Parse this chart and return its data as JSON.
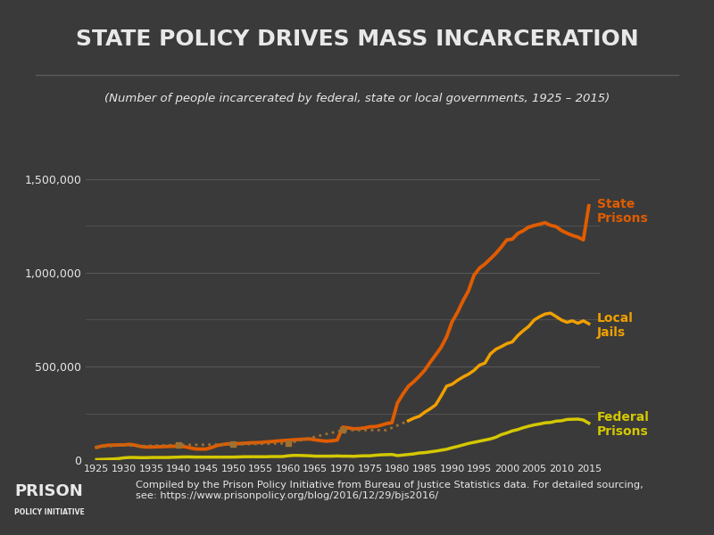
{
  "title": "STATE POLICY DRIVES MASS INCARCERATION",
  "subtitle": "(Number of people incarcerated by federal, state or local governments, 1925 – 2015)",
  "background_color": "#3a3a3a",
  "text_color": "#e8e8e8",
  "grid_color": "#5a5a5a",
  "footnote": "Compiled by the Prison Policy Initiative from Bureau of Justice Statistics data. For detailed sourcing,\nsee: https://www.prisonpolicy.org/blog/2016/12/29/bjs2016/",
  "state_color": "#e05c00",
  "jail_color": "#f0a000",
  "federal_color": "#d4c800",
  "jail_dotted_color": "#a07030",
  "ylim": [
    0,
    1600000
  ],
  "state_prisons": {
    "years": [
      1925,
      1926,
      1927,
      1928,
      1929,
      1930,
      1931,
      1932,
      1933,
      1934,
      1935,
      1936,
      1937,
      1938,
      1939,
      1940,
      1941,
      1942,
      1943,
      1944,
      1945,
      1946,
      1947,
      1948,
      1949,
      1950,
      1951,
      1952,
      1953,
      1954,
      1955,
      1956,
      1957,
      1958,
      1959,
      1960,
      1961,
      1962,
      1963,
      1964,
      1965,
      1966,
      1967,
      1968,
      1969,
      1970,
      1971,
      1972,
      1973,
      1974,
      1975,
      1976,
      1977,
      1978,
      1979,
      1980,
      1981,
      1982,
      1983,
      1984,
      1985,
      1986,
      1987,
      1988,
      1989,
      1990,
      1991,
      1992,
      1993,
      1994,
      1995,
      1996,
      1997,
      1998,
      1999,
      2000,
      2001,
      2002,
      2003,
      2004,
      2005,
      2006,
      2007,
      2008,
      2009,
      2010,
      2011,
      2012,
      2013,
      2014,
      2015
    ],
    "values": [
      68000,
      75000,
      79000,
      80000,
      81000,
      81000,
      84000,
      80000,
      73000,
      70000,
      70000,
      71000,
      72000,
      73000,
      74000,
      74000,
      72000,
      66000,
      60000,
      59000,
      59000,
      67000,
      78000,
      83000,
      87000,
      87000,
      88000,
      90000,
      92000,
      93000,
      94000,
      97000,
      99000,
      102000,
      104000,
      106000,
      108000,
      110000,
      112000,
      113000,
      108000,
      104000,
      101000,
      103000,
      107000,
      176000,
      172000,
      167000,
      168000,
      172000,
      178000,
      179000,
      186000,
      195000,
      200000,
      305000,
      353000,
      394000,
      419000,
      448000,
      480000,
      523000,
      562000,
      603000,
      659000,
      739000,
      790000,
      851000,
      904000,
      987000,
      1025000,
      1047000,
      1075000,
      1104000,
      1138000,
      1176000,
      1180000,
      1210000,
      1225000,
      1244000,
      1253000,
      1260000,
      1268000,
      1254000,
      1247000,
      1226000,
      1212000,
      1200000,
      1191000,
      1176000,
      1358000
    ]
  },
  "local_jails": {
    "years": [
      1925,
      1930,
      1933,
      1940,
      1950,
      1960,
      1970,
      1978,
      1982,
      1983,
      1984,
      1985,
      1986,
      1987,
      1988,
      1989,
      1990,
      1991,
      1992,
      1993,
      1994,
      1995,
      1996,
      1997,
      1998,
      1999,
      2000,
      2001,
      2002,
      2003,
      2004,
      2005,
      2006,
      2007,
      2008,
      2009,
      2010,
      2011,
      2012,
      2013,
      2014,
      2015
    ],
    "values": [
      70000,
      80000,
      75000,
      81000,
      84000,
      90000,
      160000,
      160000,
      210000,
      224000,
      234000,
      256000,
      274000,
      295000,
      343000,
      395000,
      405000,
      426000,
      444000,
      459000,
      479000,
      507000,
      518000,
      567000,
      592000,
      606000,
      622000,
      631000,
      665000,
      691000,
      714000,
      748000,
      766000,
      780000,
      785000,
      767000,
      748000,
      736000,
      744000,
      731000,
      744000,
      728000
    ],
    "dotted_years": [
      1925,
      1930,
      1933,
      1940,
      1950,
      1960,
      1970,
      1978,
      1982
    ],
    "dotted_values": [
      70000,
      80000,
      75000,
      81000,
      84000,
      90000,
      160000,
      160000,
      210000
    ]
  },
  "federal_prisons": {
    "years": [
      1925,
      1926,
      1927,
      1928,
      1929,
      1930,
      1931,
      1932,
      1933,
      1934,
      1935,
      1936,
      1937,
      1938,
      1939,
      1940,
      1941,
      1942,
      1943,
      1944,
      1945,
      1946,
      1947,
      1948,
      1949,
      1950,
      1951,
      1952,
      1953,
      1954,
      1955,
      1956,
      1957,
      1958,
      1959,
      1960,
      1961,
      1962,
      1963,
      1964,
      1965,
      1966,
      1967,
      1968,
      1969,
      1970,
      1971,
      1972,
      1973,
      1974,
      1975,
      1976,
      1977,
      1978,
      1979,
      1980,
      1981,
      1982,
      1983,
      1984,
      1985,
      1986,
      1987,
      1988,
      1989,
      1990,
      1991,
      1992,
      1993,
      1994,
      1995,
      1996,
      1997,
      1998,
      1999,
      2000,
      2001,
      2002,
      2003,
      2004,
      2005,
      2006,
      2007,
      2008,
      2009,
      2010,
      2011,
      2012,
      2013,
      2014,
      2015
    ],
    "values": [
      3000,
      4000,
      5000,
      6000,
      8000,
      12000,
      14000,
      14000,
      13000,
      13000,
      14000,
      14000,
      14000,
      14000,
      15000,
      16000,
      17000,
      17000,
      16000,
      16000,
      16000,
      16000,
      16000,
      16000,
      16000,
      16000,
      17000,
      18000,
      18000,
      18000,
      18000,
      18000,
      19000,
      19000,
      19000,
      23000,
      25000,
      25000,
      24000,
      23000,
      21000,
      21000,
      21000,
      21000,
      22000,
      21000,
      21000,
      20000,
      22000,
      23000,
      23000,
      26000,
      28000,
      29000,
      30000,
      24000,
      27000,
      30000,
      33000,
      38000,
      40000,
      44000,
      48000,
      53000,
      58000,
      66000,
      73000,
      81000,
      89000,
      95000,
      101000,
      107000,
      113000,
      122000,
      136000,
      145000,
      156000,
      163000,
      173000,
      181000,
      188000,
      193000,
      199000,
      201000,
      208000,
      210000,
      217000,
      218000,
      219000,
      214000,
      197000
    ]
  },
  "label_state": "State\nPrisons",
  "label_jail": "Local\nJails",
  "label_federal": "Federal\nPrisons"
}
